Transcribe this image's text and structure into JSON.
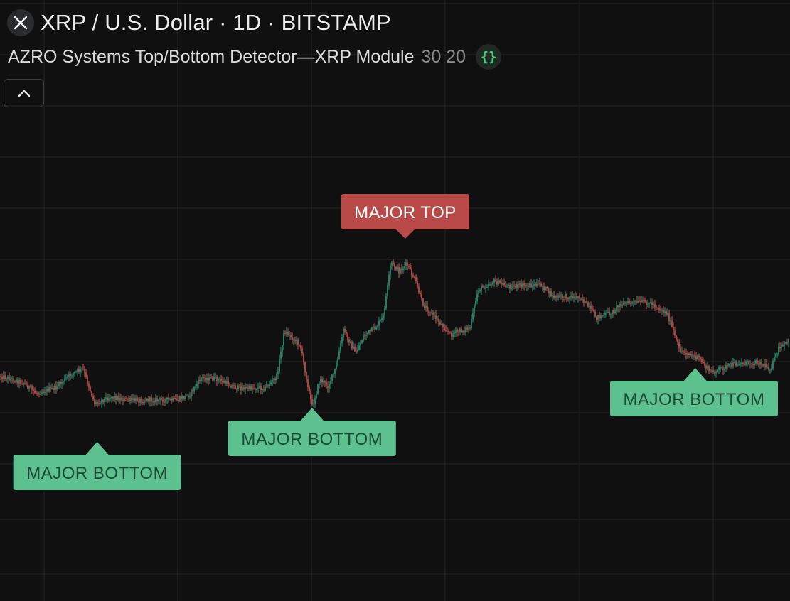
{
  "header": {
    "symbol_title": "XRP / U.S. Dollar · 1D · BITSTAMP",
    "logo_icon": "xrp-logo-icon"
  },
  "indicator": {
    "name": "AZRO Systems Top/Bottom Detector—XRP Module",
    "params": "30 20",
    "source_icon": "curly-braces-icon"
  },
  "controls": {
    "collapse_icon": "chevron-up-icon"
  },
  "colors": {
    "background": "#101010",
    "grid": "#232323",
    "up_candle": "#3aa88a",
    "down_candle": "#e0645e",
    "bottom_label": "#5cc08f",
    "top_label": "#b94a48"
  },
  "chart_data": {
    "type": "candlestick",
    "series_description": "daily candles",
    "grid": true,
    "price_shape": [
      [
        0,
        0.26
      ],
      [
        3,
        0.22
      ],
      [
        4.5,
        0.16
      ],
      [
        7,
        0.19
      ],
      [
        9,
        0.27
      ],
      [
        10.5,
        0.3
      ],
      [
        12,
        0.1
      ],
      [
        14,
        0.14
      ],
      [
        16,
        0.12
      ],
      [
        18,
        0.12
      ],
      [
        19.5,
        0.12
      ],
      [
        22.5,
        0.12
      ],
      [
        24,
        0.15
      ],
      [
        25.5,
        0.25
      ],
      [
        27.5,
        0.24
      ],
      [
        30,
        0.19
      ],
      [
        33.5,
        0.19
      ],
      [
        35,
        0.25
      ],
      [
        36,
        0.52
      ],
      [
        38,
        0.44
      ],
      [
        38.5,
        0.32
      ],
      [
        39.5,
        0.08
      ],
      [
        40.5,
        0.24
      ],
      [
        41.5,
        0.2
      ],
      [
        42.5,
        0.3
      ],
      [
        43.5,
        0.53
      ],
      [
        45,
        0.39
      ],
      [
        46,
        0.49
      ],
      [
        47.5,
        0.54
      ],
      [
        48.5,
        0.6
      ],
      [
        49.5,
        0.92
      ],
      [
        50.5,
        0.87
      ],
      [
        51.5,
        0.91
      ],
      [
        52.5,
        0.82
      ],
      [
        53.5,
        0.68
      ],
      [
        55.5,
        0.58
      ],
      [
        57,
        0.5
      ],
      [
        59.5,
        0.54
      ],
      [
        60.5,
        0.76
      ],
      [
        62.5,
        0.81
      ],
      [
        64.5,
        0.78
      ],
      [
        68.5,
        0.79
      ],
      [
        70,
        0.72
      ],
      [
        73.5,
        0.72
      ],
      [
        75.5,
        0.6
      ],
      [
        77.5,
        0.63
      ],
      [
        78.5,
        0.68
      ],
      [
        81.5,
        0.69
      ],
      [
        82.5,
        0.68
      ],
      [
        84.5,
        0.62
      ],
      [
        86,
        0.41
      ],
      [
        88.5,
        0.36
      ],
      [
        90,
        0.28
      ],
      [
        93,
        0.33
      ],
      [
        96,
        0.34
      ],
      [
        97.5,
        0.3
      ],
      [
        98.5,
        0.41
      ],
      [
        100,
        0.47
      ]
    ],
    "labels": [
      {
        "text": "MAJOR BOTTOM",
        "kind": "bottom",
        "at": 12.3
      },
      {
        "text": "MAJOR BOTTOM",
        "kind": "bottom",
        "at": 39.5
      },
      {
        "text": "MAJOR TOP",
        "kind": "top",
        "at": 51.3
      },
      {
        "text": "MAJOR BOTTOM",
        "kind": "bottom",
        "at": 88
      }
    ]
  }
}
